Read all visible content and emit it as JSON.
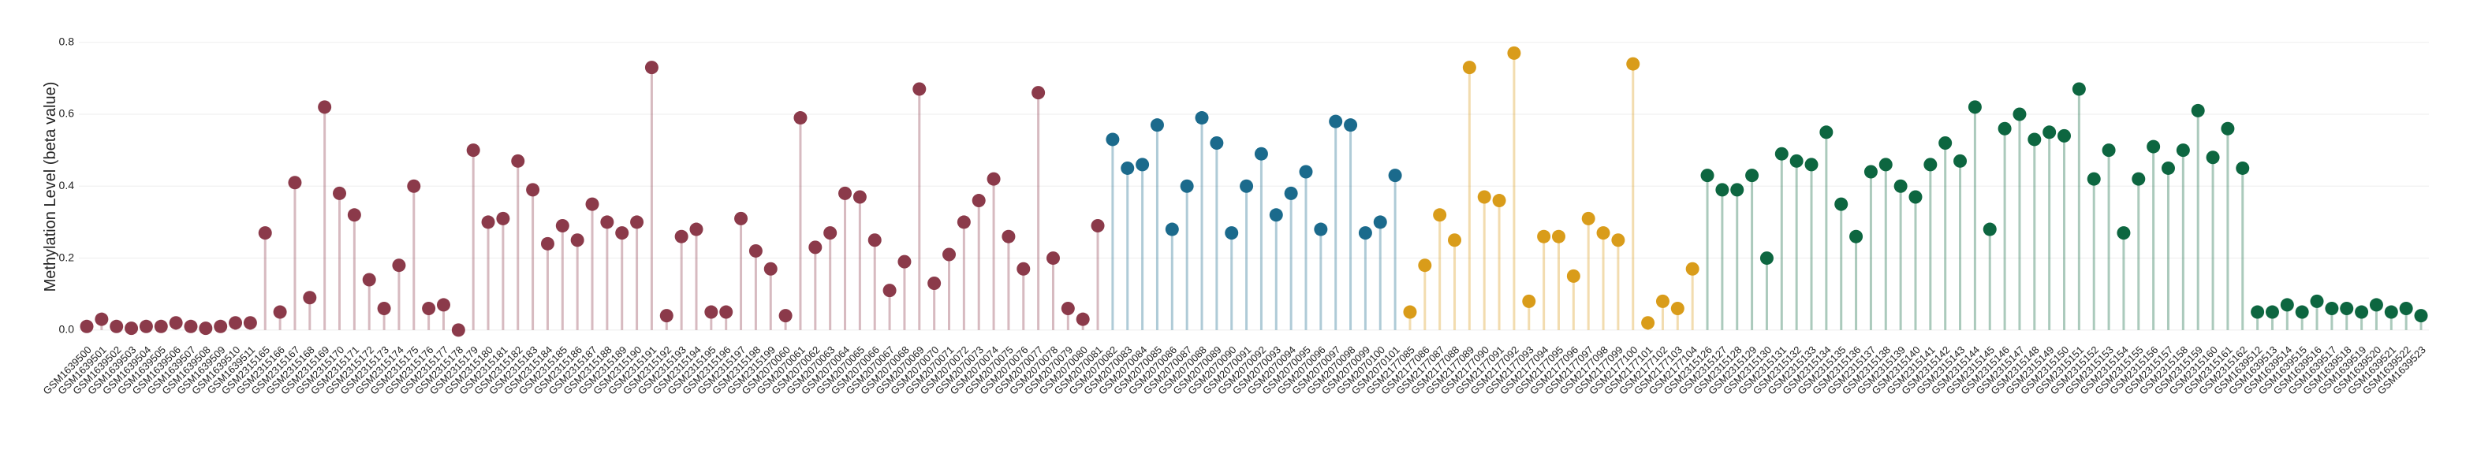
{
  "chart_data": {
    "type": "lollipop",
    "y_label": "Methylation Level (beta value)",
    "ylim": [
      -0.02,
      0.83
    ],
    "yticks": [
      {
        "value": 0,
        "label": "0.0"
      },
      0.2,
      0.4,
      0.6,
      0.8
    ],
    "grid": true,
    "series": [
      {
        "color": "#8b3a4a",
        "categories": [
          "GSM1639500",
          "GSM1639501",
          "GSM1639502",
          "GSM1639503",
          "GSM1639504",
          "GSM1639505",
          "GSM1639506",
          "GSM1639507",
          "GSM1639508",
          "GSM1639509",
          "GSM1639510",
          "GSM1639511",
          "GSM2315165",
          "GSM2315166",
          "GSM2315167",
          "GSM2315168",
          "GSM2315169",
          "GSM2315170",
          "GSM2315171",
          "GSM2315172",
          "GSM2315173",
          "GSM2315174",
          "GSM2315175",
          "GSM2315176",
          "GSM2315177",
          "GSM2315178",
          "GSM2315179",
          "GSM2315180",
          "GSM2315181",
          "GSM2315182",
          "GSM2315183",
          "GSM2315184",
          "GSM2315185",
          "GSM2315186",
          "GSM2315187",
          "GSM2315188",
          "GSM2315189",
          "GSM2315190",
          "GSM2315191",
          "GSM2315192",
          "GSM2315193",
          "GSM2315194",
          "GSM2315195",
          "GSM2315196",
          "GSM2315197",
          "GSM2315198",
          "GSM2315199",
          "GSM2070060",
          "GSM2070061",
          "GSM2070062",
          "GSM2070063",
          "GSM2070064",
          "GSM2070065",
          "GSM2070066",
          "GSM2070067",
          "GSM2070068",
          "GSM2070069",
          "GSM2070070",
          "GSM2070071",
          "GSM2070072",
          "GSM2070073",
          "GSM2070074",
          "GSM2070075",
          "GSM2070076",
          "GSM2070077",
          "GSM2070078",
          "GSM2070079",
          "GSM2070080",
          "GSM2070081"
        ],
        "values": [
          0.01,
          0.03,
          0.01,
          0.005,
          0.01,
          0.01,
          0.02,
          0.01,
          0.005,
          0.01,
          0.02,
          0.02,
          0.27,
          0.05,
          0.41,
          0.09,
          0.62,
          0.38,
          0.32,
          0.14,
          0.06,
          0.18,
          0.4,
          0.06,
          0.07,
          0,
          0.5,
          0.3,
          0.31,
          0.47,
          0.39,
          0.24,
          0.29,
          0.25,
          0.35,
          0.3,
          0.27,
          0.3,
          0.73,
          0.04,
          0.26,
          0.28,
          0.05,
          0.05,
          0.31,
          0.22,
          0.17,
          0.04,
          0.59,
          0.23,
          0.27,
          0.38,
          0.37,
          0.25,
          0.11,
          0.19,
          0.67,
          0.13,
          0.21,
          0.3,
          0.36,
          0.42,
          0.26,
          0.17,
          0.66,
          0.2,
          0.06,
          0.03,
          0.29
        ]
      },
      {
        "color": "#1b6a8c",
        "categories": [
          "GSM2070082",
          "GSM2070083",
          "GSM2070084",
          "GSM2070085",
          "GSM2070086",
          "GSM2070087",
          "GSM2070088",
          "GSM2070089",
          "GSM2070090",
          "GSM2070091",
          "GSM2070092",
          "GSM2070093",
          "GSM2070094",
          "GSM2070095",
          "GSM2070096",
          "GSM2070097",
          "GSM2070098",
          "GSM2070099",
          "GSM2070100",
          "GSM2070101"
        ],
        "values": [
          0.53,
          0.45,
          0.46,
          0.57,
          0.28,
          0.4,
          0.59,
          0.52,
          0.27,
          0.4,
          0.49,
          0.32,
          0.38,
          0.44,
          0.28,
          0.58,
          0.57,
          0.27,
          0.3,
          0.43
        ]
      },
      {
        "color": "#d99c1a",
        "categories": [
          "GSM2177085",
          "GSM2177086",
          "GSM2177087",
          "GSM2177088",
          "GSM2177089",
          "GSM2177090",
          "GSM2177091",
          "GSM2177092",
          "GSM2177093",
          "GSM2177094",
          "GSM2177095",
          "GSM2177096",
          "GSM2177097",
          "GSM2177098",
          "GSM2177099",
          "GSM2177100",
          "GSM2177101",
          "GSM2177102",
          "GSM2177103",
          "GSM2177104"
        ],
        "values": [
          0.05,
          0.18,
          0.32,
          0.25,
          0.73,
          0.37,
          0.36,
          0.77,
          0.08,
          0.26,
          0.26,
          0.15,
          0.31,
          0.27,
          0.25,
          0.74,
          0.02,
          0.08,
          0.06,
          0.17
        ]
      },
      {
        "color": "#0d6640",
        "categories": [
          "GSM2315126",
          "GSM2315127",
          "GSM2315128",
          "GSM2315129",
          "GSM2315130",
          "GSM2315131",
          "GSM2315132",
          "GSM2315133",
          "GSM2315134",
          "GSM2315135",
          "GSM2315136",
          "GSM2315137",
          "GSM2315138",
          "GSM2315139",
          "GSM2315140",
          "GSM2315141",
          "GSM2315142",
          "GSM2315143",
          "GSM2315144",
          "GSM2315145",
          "GSM2315146",
          "GSM2315147",
          "GSM2315148",
          "GSM2315149",
          "GSM2315150",
          "GSM2315151",
          "GSM2315152",
          "GSM2315153",
          "GSM2315154",
          "GSM2315155",
          "GSM2315156",
          "GSM2315157",
          "GSM2315158",
          "GSM2315159",
          "GSM2315160",
          "GSM2315161",
          "GSM2315162",
          "GSM1639512",
          "GSM1639513",
          "GSM1639514",
          "GSM1639515",
          "GSM1639516",
          "GSM1639517",
          "GSM1639518",
          "GSM1639519",
          "GSM1639520",
          "GSM1639521",
          "GSM1639522",
          "GSM1639523"
        ],
        "values": [
          0.43,
          0.39,
          0.39,
          0.43,
          0.2,
          0.49,
          0.47,
          0.46,
          0.55,
          0.35,
          0.26,
          0.44,
          0.46,
          0.4,
          0.37,
          0.46,
          0.52,
          0.47,
          0.62,
          0.28,
          0.56,
          0.6,
          0.53,
          0.55,
          0.54,
          0.67,
          0.42,
          0.5,
          0.27,
          0.42,
          0.51,
          0.45,
          0.5,
          0.61,
          0.48,
          0.56,
          0.45,
          0.05,
          0.05,
          0.07,
          0.05,
          0.08,
          0.06,
          0.06,
          0.05,
          0.07,
          0.05,
          0.06,
          0.04
        ]
      }
    ]
  }
}
